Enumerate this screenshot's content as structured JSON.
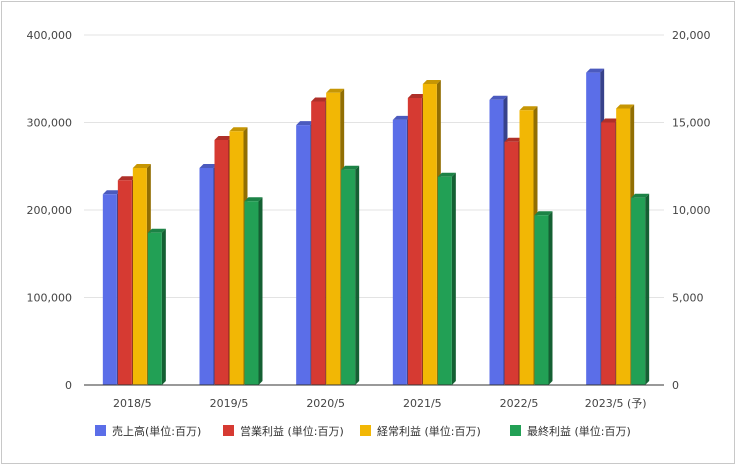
{
  "chart_data": {
    "type": "bar",
    "categories": [
      "2018/5",
      "2019/5",
      "2020/5",
      "2021/5",
      "2022/5",
      "2023/5 (予)"
    ],
    "series": [
      {
        "name": "売上高(単位:百万)",
        "axis": "left",
        "color": "#5b6ee8",
        "values": [
          218000,
          248000,
          297000,
          303000,
          326000,
          357000
        ]
      },
      {
        "name": "営業利益 (単位:百万)",
        "axis": "right",
        "color": "#d63a32",
        "values": [
          11700,
          14000,
          16200,
          16400,
          13900,
          15000
        ]
      },
      {
        "name": "経常利益 (単位:百万)",
        "axis": "right",
        "color": "#f2b705",
        "values": [
          12400,
          14500,
          16700,
          17200,
          15700,
          15800
        ]
      },
      {
        "name": "最終利益 (単位:百万)",
        "axis": "right",
        "color": "#22a055",
        "values": [
          8700,
          10500,
          12300,
          11900,
          9700,
          10700
        ]
      }
    ],
    "y_left": {
      "min": 0,
      "max": 400000,
      "ticks": [
        "0",
        "100,000",
        "200,000",
        "300,000",
        "400,000"
      ]
    },
    "y_right": {
      "min": 0,
      "max": 20000,
      "ticks": [
        "0",
        "5,000",
        "10,000",
        "15,000",
        "20,000"
      ]
    },
    "grid": true,
    "legend": "bottom",
    "style": "3d-bars"
  }
}
